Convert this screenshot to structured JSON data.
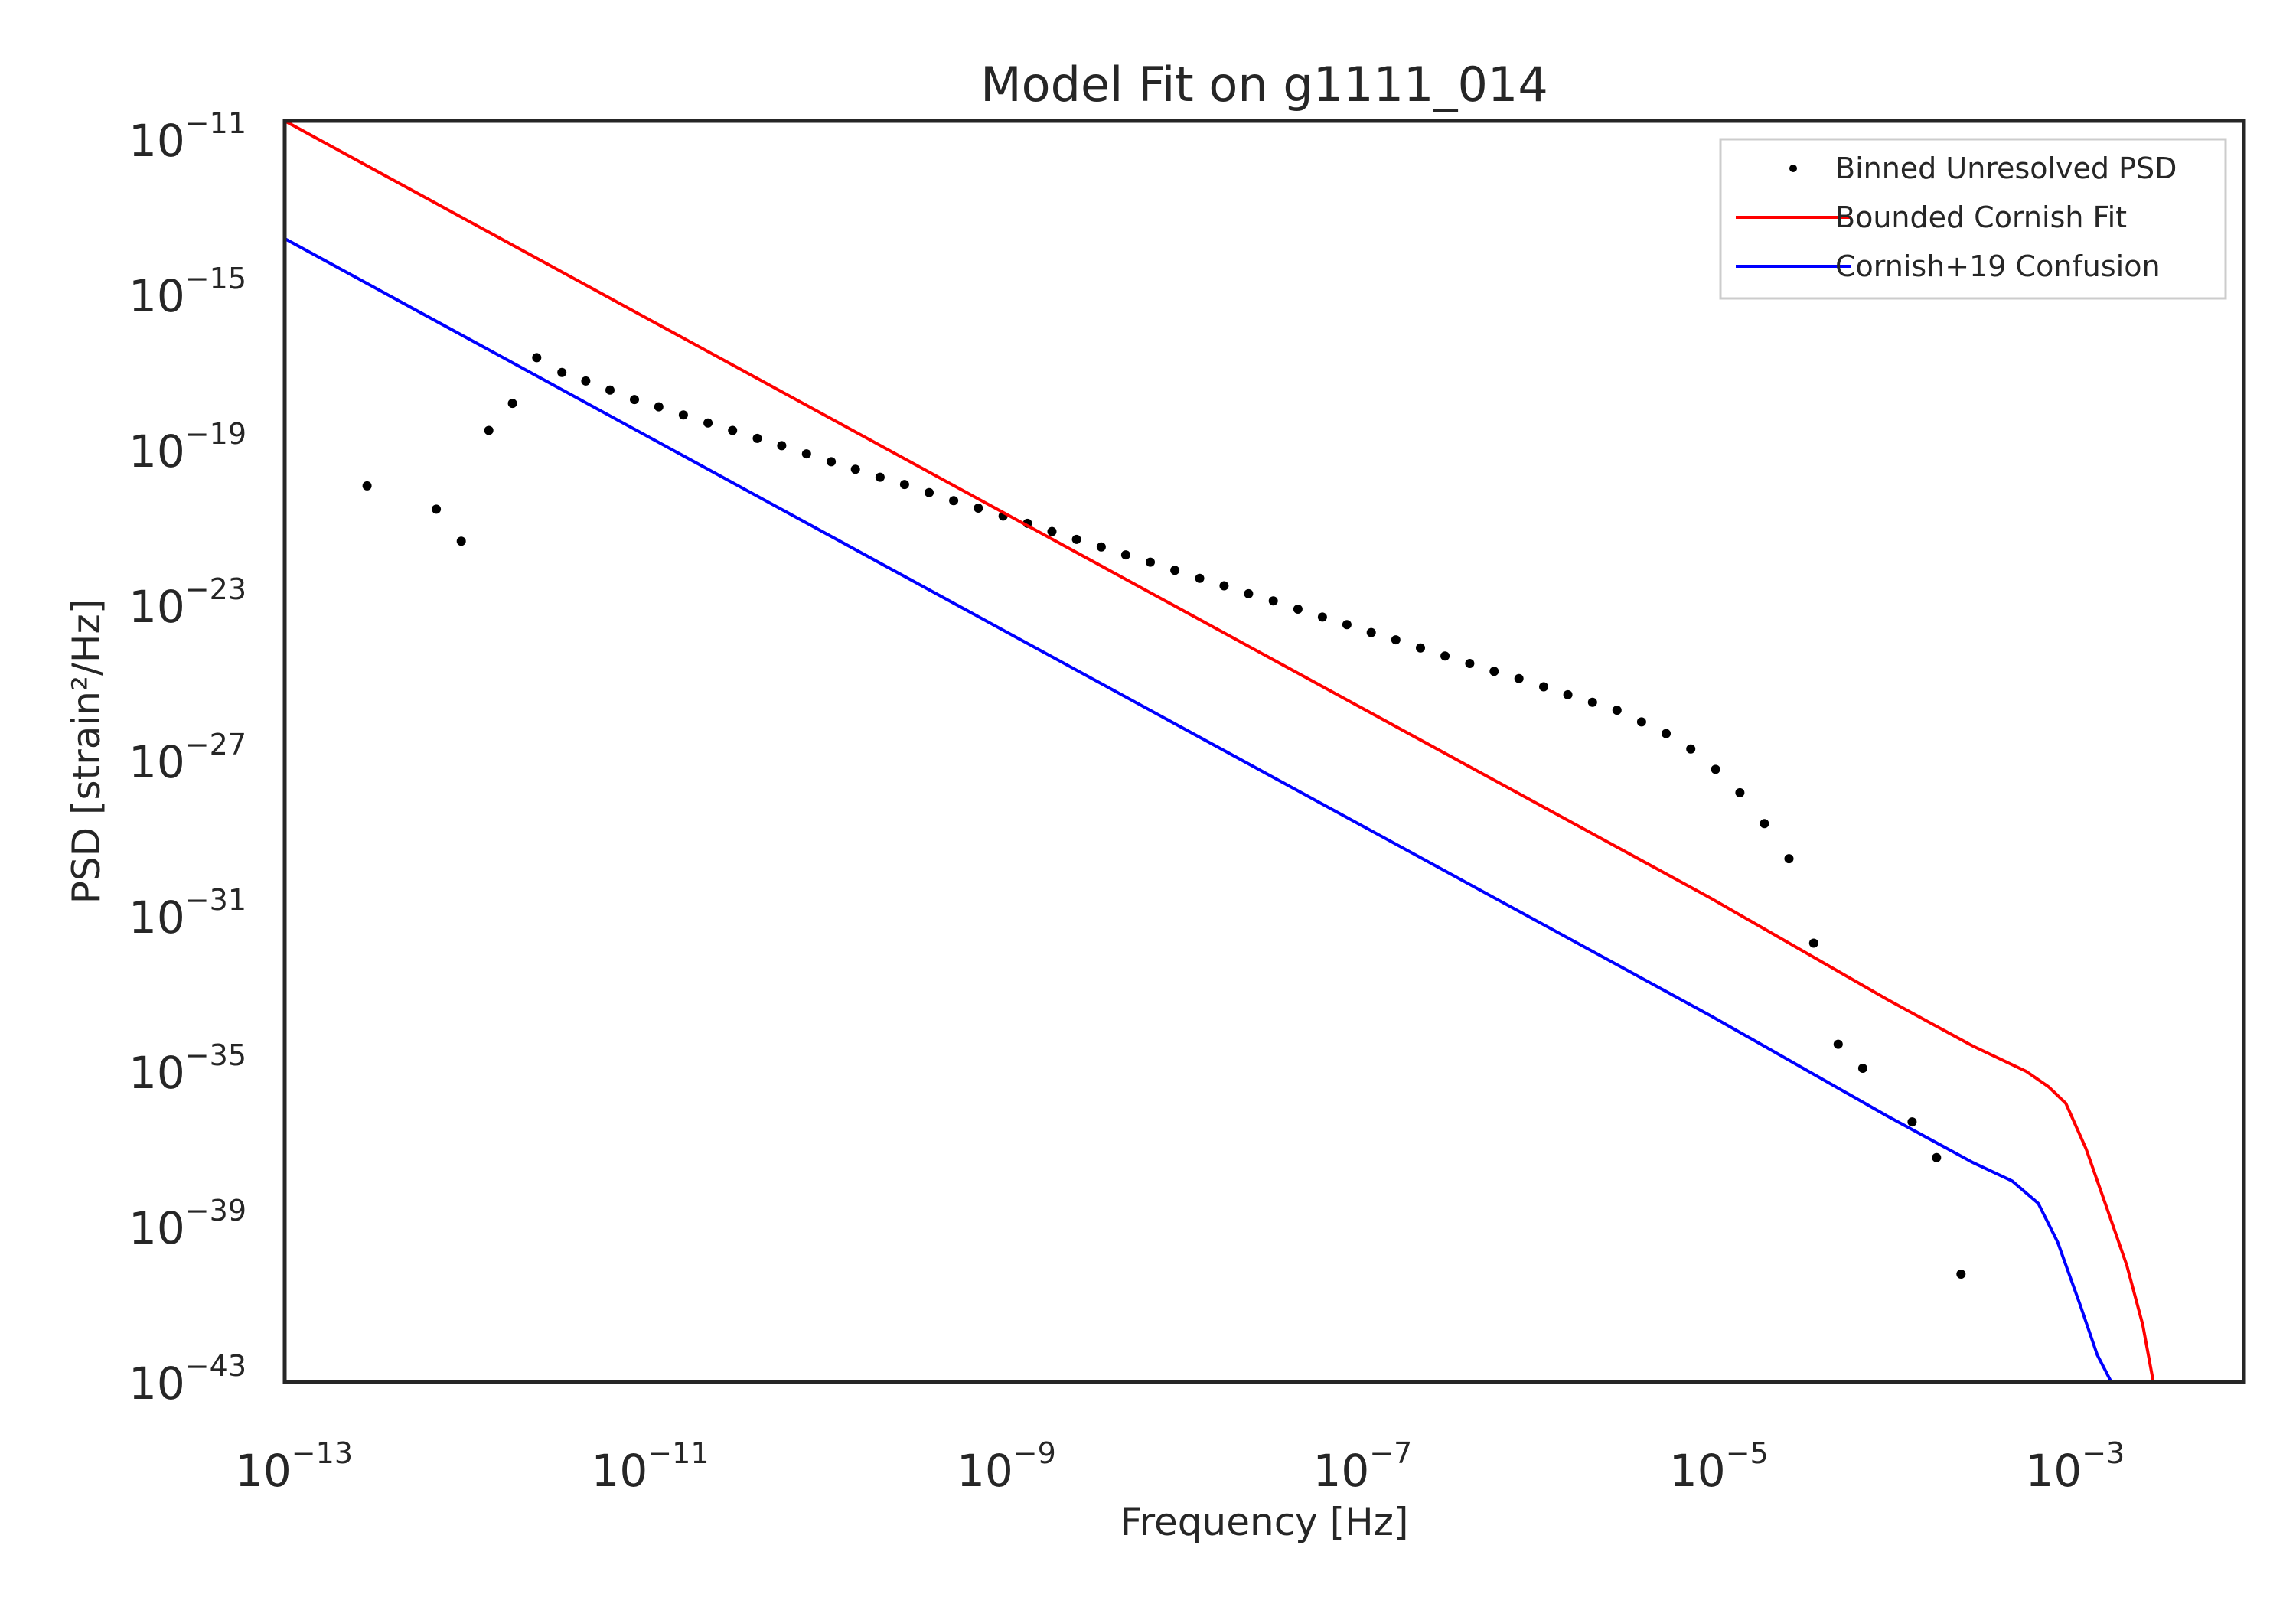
{
  "chart_data": {
    "type": "line",
    "title": "Model Fit on g1111_014",
    "xlabel": "Frequency [Hz]",
    "ylabel": "PSD [strain²/Hz]",
    "xscale": "log",
    "yscale": "log",
    "xlim": [
      1e-13,
      0.01
    ],
    "ylim": [
      1e-43,
      3e-11
    ],
    "grid": false,
    "legend_position": "top-right",
    "x_ticks": [
      {
        "value": 1e-13,
        "base": "10",
        "exp": "−13"
      },
      {
        "value": 1e-11,
        "base": "10",
        "exp": "−11"
      },
      {
        "value": 1e-09,
        "base": "10",
        "exp": "−9"
      },
      {
        "value": 1e-07,
        "base": "10",
        "exp": "−7"
      },
      {
        "value": 1e-05,
        "base": "10",
        "exp": "−5"
      },
      {
        "value": 0.001,
        "base": "10",
        "exp": "−3"
      }
    ],
    "y_ticks": [
      {
        "value": 1e-43,
        "base": "10",
        "exp": "−43"
      },
      {
        "value": 1e-39,
        "base": "10",
        "exp": "−39"
      },
      {
        "value": 1e-35,
        "base": "10",
        "exp": "−35"
      },
      {
        "value": 1e-31,
        "base": "10",
        "exp": "−31"
      },
      {
        "value": 1e-27,
        "base": "10",
        "exp": "−27"
      },
      {
        "value": 1e-23,
        "base": "10",
        "exp": "−23"
      },
      {
        "value": 1e-19,
        "base": "10",
        "exp": "−19"
      },
      {
        "value": 1e-15,
        "base": "10",
        "exp": "−15"
      },
      {
        "value": 1e-11,
        "base": "10",
        "exp": "−11"
      }
    ],
    "series": [
      {
        "name": "Binned Unresolved PSD",
        "kind": "scatter",
        "color": "#000000",
        "points": [
          [
            2.9e-13,
            1.2e-20
          ],
          [
            7.1e-13,
            3e-21
          ],
          [
            9.8e-13,
            4.5e-22
          ],
          [
            1.4e-12,
            3.2e-19
          ],
          [
            1.9e-12,
            1.6e-18
          ],
          [
            2.6e-12,
            2.4e-17
          ],
          [
            3.6e-12,
            1e-17
          ],
          [
            4.9e-12,
            6e-18
          ],
          [
            6.7e-12,
            3.5e-18
          ],
          [
            9.2e-12,
            2e-18
          ],
          [
            1.26e-11,
            1.3e-18
          ],
          [
            1.73e-11,
            8e-19
          ],
          [
            2.38e-11,
            5e-19
          ],
          [
            3.27e-11,
            3.2e-19
          ],
          [
            4.5e-11,
            2e-19
          ],
          [
            6.17e-11,
            1.3e-19
          ],
          [
            8.5e-11,
            8e-20
          ],
          [
            1.17e-10,
            5e-20
          ],
          [
            1.6e-10,
            3.2e-20
          ],
          [
            2.2e-10,
            2e-20
          ],
          [
            3.02e-10,
            1.3e-20
          ],
          [
            4.15e-10,
            8e-21
          ],
          [
            5.7e-10,
            5e-21
          ],
          [
            7.84e-10,
            3.2e-21
          ],
          [
            1.08e-09,
            2e-21
          ],
          [
            1.48e-09,
            1.3e-21
          ],
          [
            2.03e-09,
            8e-22
          ],
          [
            2.79e-09,
            5e-22
          ],
          [
            3.84e-09,
            3.2e-22
          ],
          [
            5.27e-09,
            2e-22
          ],
          [
            7.24e-09,
            1.3e-22
          ],
          [
            9.95e-09,
            8e-23
          ],
          [
            1.37e-08,
            5e-23
          ],
          [
            1.88e-08,
            3.2e-23
          ],
          [
            2.58e-08,
            2e-23
          ],
          [
            3.55e-08,
            1.3e-23
          ],
          [
            4.88e-08,
            8e-24
          ],
          [
            6.7e-08,
            5e-24
          ],
          [
            9.2e-08,
            3.2e-24
          ],
          [
            1.26e-07,
            2e-24
          ],
          [
            1.73e-07,
            1.3e-24
          ],
          [
            2.38e-07,
            8e-25
          ],
          [
            3.27e-07,
            5e-25
          ],
          [
            4.5e-07,
            3.2e-25
          ],
          [
            6.17e-07,
            2e-25
          ],
          [
            8.5e-07,
            1.3e-25
          ],
          [
            1.17e-06,
            8e-26
          ],
          [
            1.6e-06,
            5e-26
          ],
          [
            2.2e-06,
            3.2e-26
          ],
          [
            3.02e-06,
            2e-26
          ],
          [
            4.15e-06,
            1e-26
          ],
          [
            5.7e-06,
            5e-27
          ],
          [
            7.84e-06,
            2e-27
          ],
          [
            1.08e-05,
            6e-28
          ],
          [
            1.48e-05,
            1.5e-28
          ],
          [
            2.03e-05,
            2.4e-29
          ],
          [
            2.79e-05,
            3e-30
          ],
          [
            3.84e-05,
            2e-32
          ],
          [
            5.27e-05,
            5e-35
          ],
          [
            7.24e-05,
            1.2e-35
          ],
          [
            0.000137,
            5e-37
          ],
          [
            0.000188,
            6e-38
          ],
          [
            0.000258,
            6e-41
          ]
        ]
      },
      {
        "name": "Bounded Cornish Fit",
        "kind": "line",
        "color": "#ff0000",
        "points": [
          [
            1e-13,
            3e-11
          ],
          [
            1e-11,
            3e-16
          ],
          [
            1e-09,
            3e-21
          ],
          [
            1e-07,
            3e-26
          ],
          [
            1e-05,
            3e-31
          ],
          [
            0.0001,
            7e-34
          ],
          [
            0.0003,
            4.5e-35
          ],
          [
            0.0006,
            1e-35
          ],
          [
            0.0008,
            4e-36
          ],
          [
            0.001,
            1.5e-36
          ],
          [
            0.0013,
            1e-37
          ],
          [
            0.0017,
            3e-39
          ],
          [
            0.0022,
            1e-40
          ],
          [
            0.0027,
            3e-42
          ],
          [
            0.0031,
            1e-43
          ]
        ]
      },
      {
        "name": "Cornish+19 Confusion",
        "kind": "line",
        "color": "#0000ff",
        "points": [
          [
            1e-13,
            2.8e-14
          ],
          [
            1e-11,
            2.8e-19
          ],
          [
            1e-09,
            2.8e-24
          ],
          [
            1e-07,
            2.8e-29
          ],
          [
            1e-05,
            2.8e-34
          ],
          [
            0.0001,
            7e-37
          ],
          [
            0.0003,
            4.5e-38
          ],
          [
            0.0005,
            1.5e-38
          ],
          [
            0.0007,
            4e-39
          ],
          [
            0.0009,
            4e-40
          ],
          [
            0.0012,
            1e-41
          ],
          [
            0.0015,
            5e-43
          ],
          [
            0.0018,
            1e-43
          ]
        ]
      }
    ]
  }
}
